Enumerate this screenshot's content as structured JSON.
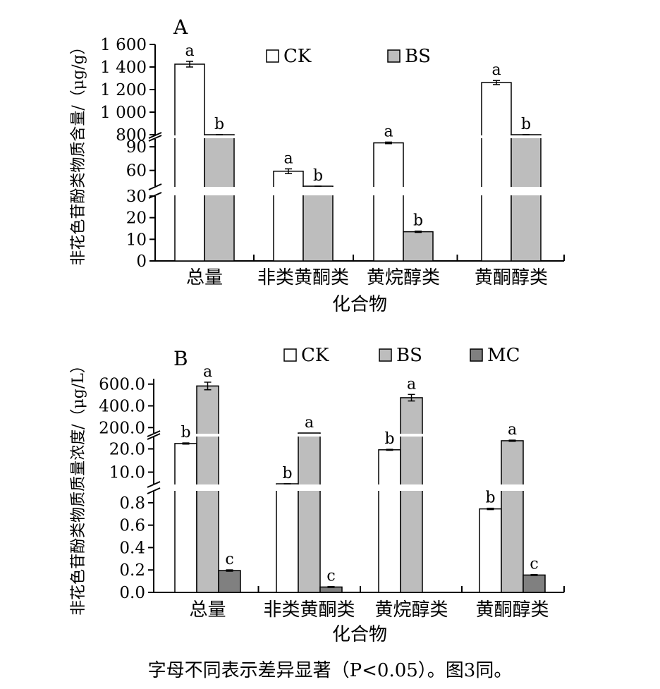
{
  "chart_data": [
    {
      "type": "bar",
      "panel_label": "A",
      "categories": [
        "总量",
        "非类黄酮类",
        "黄烷醇类",
        "黄酮醇类"
      ],
      "xlabel": "化合物",
      "ylabel": "非花色苷酚类物质含量/（μg/g）",
      "axis_break": true,
      "segments": [
        {
          "range": [
            0,
            30
          ],
          "ticks": [
            0,
            10,
            20,
            30
          ],
          "tick_labels": [
            "0",
            "10",
            "20",
            "30"
          ]
        },
        {
          "range": [
            40,
            100
          ],
          "ticks": [
            60,
            90
          ],
          "tick_labels": [
            "60",
            "90"
          ]
        },
        {
          "range": [
            800,
            1600
          ],
          "ticks": [
            800,
            1000,
            1200,
            1400,
            1600
          ],
          "tick_labels": [
            "800",
            "1 000",
            "1 200",
            "1 400",
            "1 600"
          ]
        }
      ],
      "series": [
        {
          "name": "CK",
          "color": "#ffffff",
          "values": [
            1425,
            59,
            95,
            1262
          ],
          "errors": [
            25,
            3,
            1,
            18
          ],
          "letters": [
            "a",
            "a",
            "a",
            "a"
          ]
        },
        {
          "name": "BS",
          "color": "#bdbdbd",
          "values": [
            774,
            31,
            13.5,
            768
          ],
          "errors": [
            6,
            0.6,
            0.3,
            4
          ],
          "letters": [
            "b",
            "b",
            "b",
            "b"
          ]
        }
      ],
      "legend": {
        "placement": "top",
        "entries": [
          "CK",
          "BS"
        ]
      }
    },
    {
      "type": "bar",
      "panel_label": "B",
      "categories": [
        "总量",
        "非类黄酮类",
        "黄烷醇类",
        "黄酮醇类"
      ],
      "xlabel": "化合物",
      "ylabel": "非花色苷酚类物质质量浓度/（μg/L）",
      "axis_break": true,
      "segments": [
        {
          "range": [
            0,
            0.9
          ],
          "ticks": [
            0,
            0.2,
            0.4,
            0.6,
            0.8
          ],
          "tick_labels": [
            "0.0",
            "0.2",
            "0.4",
            "0.6",
            "0.8"
          ]
        },
        {
          "range": [
            5,
            25
          ],
          "ticks": [
            10,
            20
          ],
          "tick_labels": [
            "10.0",
            "20.0"
          ]
        },
        {
          "range": [
            150,
            650
          ],
          "ticks": [
            200,
            400,
            600
          ],
          "tick_labels": [
            "200.0",
            "400.0",
            "600.0"
          ]
        }
      ],
      "series": [
        {
          "name": "CK",
          "color": "#ffffff",
          "values": [
            22.3,
            0.91,
            19.6,
            0.745
          ],
          "errors": [
            0.25,
            0.005,
            0.2,
            0.006
          ],
          "letters": [
            "b",
            "b",
            "b",
            "b"
          ]
        },
        {
          "name": "BS",
          "color": "#bdbdbd",
          "values": [
            583,
            25.7,
            475,
            23.5
          ],
          "errors": [
            35,
            0,
            30,
            0.25
          ],
          "letters": [
            "a",
            "a",
            "a",
            "a"
          ]
        },
        {
          "name": "MC",
          "color": "#808080",
          "values": [
            0.195,
            0.048,
            0,
            0.155
          ],
          "errors": [
            0.006,
            0.004,
            0,
            0.004
          ],
          "letters": [
            "c",
            "c",
            "",
            "c"
          ]
        }
      ],
      "legend": {
        "placement": "top",
        "entries": [
          "CK",
          "BS",
          "MC"
        ]
      }
    }
  ],
  "caption": "字母不同表示差异显著（P<0.05）。图3同。"
}
